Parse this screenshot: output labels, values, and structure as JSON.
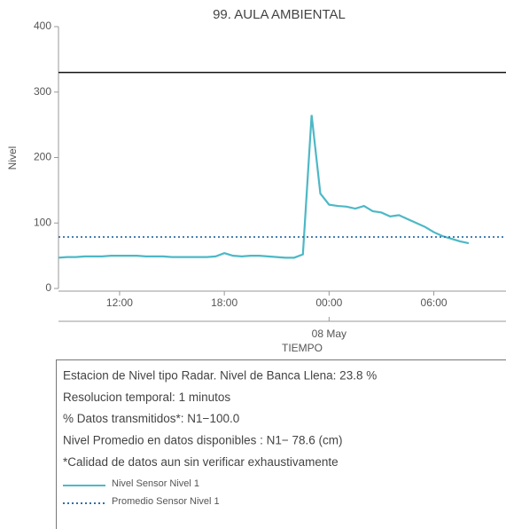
{
  "chart_data": {
    "type": "line",
    "title": "99. AULA AMBIENTAL",
    "ylabel": "Nivel",
    "xlabel": "TIEMPO",
    "x": [
      "08:30",
      "09:00",
      "09:30",
      "10:00",
      "10:30",
      "11:00",
      "11:30",
      "12:00",
      "12:30",
      "13:00",
      "13:30",
      "14:00",
      "14:30",
      "15:00",
      "15:30",
      "16:00",
      "16:30",
      "17:00",
      "17:30",
      "18:00",
      "18:30",
      "19:00",
      "19:30",
      "20:00",
      "20:30",
      "21:00",
      "21:30",
      "22:00",
      "22:30",
      "23:00",
      "23:30",
      "00:00",
      "00:30",
      "01:00",
      "01:30",
      "02:00",
      "02:30",
      "03:00",
      "03:30",
      "04:00",
      "04:30",
      "05:00",
      "05:30",
      "06:00",
      "06:30",
      "07:00",
      "07:30",
      "08:00"
    ],
    "series": [
      {
        "name": "Nivel Sensor Nivel 1",
        "color": "#4db8c6",
        "values": [
          47,
          48,
          48,
          49,
          49,
          49,
          50,
          50,
          50,
          50,
          49,
          49,
          49,
          48,
          48,
          48,
          48,
          48,
          49,
          54,
          50,
          49,
          50,
          50,
          49,
          48,
          47,
          47,
          52,
          265,
          145,
          128,
          126,
          125,
          122,
          126,
          118,
          116,
          110,
          112,
          106,
          100,
          94,
          86,
          80,
          76,
          72,
          69
        ]
      },
      {
        "name": "Promedio Sensor Nivel 1",
        "color": "#2f6fa8",
        "value": 78.6,
        "dash": "2,3"
      }
    ],
    "threshold": {
      "value": 330,
      "color": "#111"
    },
    "ylim": [
      0,
      400
    ],
    "yticks": [
      0,
      100,
      200,
      300,
      400
    ],
    "xticks": [
      {
        "value": "12:00",
        "label": "12:00"
      },
      {
        "value": "18:00",
        "label": "18:00"
      },
      {
        "value": "00:00",
        "label": "00:00",
        "sublabel": "08 May"
      },
      {
        "value": "06:00",
        "label": "06:00"
      }
    ],
    "notes": [
      "Estacion de Nivel tipo Radar. Nivel de Banca Llena: 23.8 %",
      "Resolucion temporal: 1 minutos",
      "% Datos transmitidos*: N1−100.0",
      "Nivel Promedio en datos disponibles : N1− 78.6 (cm)",
      "*Calidad de datos aun sin verificar exhaustivamente"
    ]
  }
}
